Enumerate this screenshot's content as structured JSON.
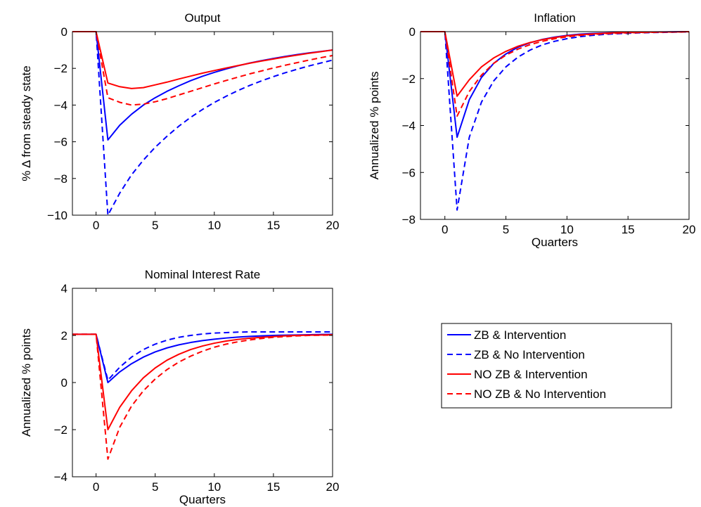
{
  "legend": {
    "entries": [
      "ZB & Intervention",
      "ZB & No Intervention",
      "NO ZB & Intervention",
      "NO ZB & No Intervention"
    ],
    "placement": "empty-bottom-right-panel"
  },
  "series_styles": [
    {
      "color": "#0000ff",
      "dash": "solid"
    },
    {
      "color": "#0000ff",
      "dash": "dashed"
    },
    {
      "color": "#ff0000",
      "dash": "solid"
    },
    {
      "color": "#ff0000",
      "dash": "dashed"
    }
  ],
  "chart_data": [
    {
      "type": "line",
      "title": "Output",
      "xlabel": "",
      "ylabel": "% Δ from steady state",
      "xlim": [
        -2,
        20
      ],
      "ylim": [
        -10,
        0
      ],
      "xticks": [
        0,
        5,
        10,
        15,
        20
      ],
      "yticks": [
        0,
        -2,
        -4,
        -6,
        -8,
        -10
      ],
      "x": [
        -2,
        -1,
        0,
        1,
        2,
        3,
        4,
        5,
        6,
        7,
        8,
        9,
        10,
        11,
        12,
        13,
        14,
        15,
        16,
        17,
        18,
        19,
        20
      ],
      "series": [
        {
          "name": "ZB & Intervention",
          "values": [
            0,
            0,
            0,
            -5.9,
            -5.1,
            -4.5,
            -4.0,
            -3.6,
            -3.25,
            -2.95,
            -2.67,
            -2.43,
            -2.22,
            -2.03,
            -1.86,
            -1.71,
            -1.58,
            -1.46,
            -1.35,
            -1.25,
            -1.16,
            -1.08,
            -1.0
          ]
        },
        {
          "name": "ZB & No Intervention",
          "values": [
            0,
            0,
            0,
            -10.0,
            -8.8,
            -7.8,
            -7.0,
            -6.3,
            -5.7,
            -5.15,
            -4.67,
            -4.24,
            -3.86,
            -3.52,
            -3.21,
            -2.93,
            -2.68,
            -2.45,
            -2.24,
            -2.05,
            -1.87,
            -1.71,
            -1.55
          ]
        },
        {
          "name": "NO ZB & Intervention",
          "values": [
            0,
            0,
            0,
            -2.8,
            -3.0,
            -3.1,
            -3.05,
            -2.9,
            -2.75,
            -2.58,
            -2.42,
            -2.26,
            -2.12,
            -1.98,
            -1.85,
            -1.72,
            -1.6,
            -1.49,
            -1.38,
            -1.28,
            -1.18,
            -1.09,
            -1.0
          ]
        },
        {
          "name": "NO ZB & No Intervention",
          "values": [
            0,
            0,
            0,
            -3.6,
            -3.85,
            -4.0,
            -3.95,
            -3.82,
            -3.65,
            -3.45,
            -3.25,
            -3.05,
            -2.85,
            -2.66,
            -2.48,
            -2.3,
            -2.14,
            -1.98,
            -1.83,
            -1.69,
            -1.55,
            -1.42,
            -1.3
          ]
        }
      ]
    },
    {
      "type": "line",
      "title": "Inflation",
      "xlabel": "Quarters",
      "ylabel": "Annualized % points",
      "xlim": [
        -2,
        20
      ],
      "ylim": [
        -8,
        0
      ],
      "xticks": [
        0,
        5,
        10,
        15,
        20
      ],
      "yticks": [
        0,
        -2,
        -4,
        -6,
        -8
      ],
      "x": [
        -2,
        -1,
        0,
        1,
        2,
        3,
        4,
        5,
        6,
        7,
        8,
        9,
        10,
        11,
        12,
        13,
        14,
        15,
        16,
        17,
        18,
        19,
        20
      ],
      "series": [
        {
          "name": "ZB & Intervention",
          "values": [
            0,
            0,
            0,
            -4.5,
            -2.9,
            -1.95,
            -1.35,
            -0.95,
            -0.66,
            -0.47,
            -0.33,
            -0.23,
            -0.16,
            -0.11,
            -0.08,
            -0.06,
            -0.04,
            -0.03,
            -0.02,
            -0.015,
            -0.01,
            -0.005,
            0
          ]
        },
        {
          "name": "ZB & No Intervention",
          "values": [
            0,
            0,
            0,
            -7.6,
            -4.5,
            -3.0,
            -2.1,
            -1.5,
            -1.08,
            -0.78,
            -0.56,
            -0.41,
            -0.3,
            -0.22,
            -0.16,
            -0.12,
            -0.09,
            -0.07,
            -0.05,
            -0.04,
            -0.03,
            -0.02,
            -0.01
          ]
        },
        {
          "name": "NO ZB & Intervention",
          "values": [
            0,
            0,
            0,
            -2.75,
            -2.05,
            -1.5,
            -1.12,
            -0.84,
            -0.62,
            -0.46,
            -0.34,
            -0.25,
            -0.18,
            -0.13,
            -0.1,
            -0.07,
            -0.05,
            -0.04,
            -0.03,
            -0.02,
            -0.015,
            -0.01,
            0
          ]
        },
        {
          "name": "NO ZB & No Intervention",
          "values": [
            0,
            0,
            0,
            -3.6,
            -2.55,
            -1.85,
            -1.35,
            -1.0,
            -0.74,
            -0.55,
            -0.41,
            -0.3,
            -0.22,
            -0.16,
            -0.12,
            -0.09,
            -0.07,
            -0.05,
            -0.04,
            -0.03,
            -0.02,
            -0.015,
            -0.01
          ]
        }
      ]
    },
    {
      "type": "line",
      "title": "Nominal Interest Rate",
      "xlabel": "Quarters",
      "ylabel": "Annualized % points",
      "xlim": [
        -2,
        20
      ],
      "ylim": [
        -4,
        4
      ],
      "xticks": [
        0,
        5,
        10,
        15,
        20
      ],
      "yticks": [
        4,
        2,
        0,
        -2,
        -4
      ],
      "x": [
        -2,
        -1,
        0,
        1,
        2,
        3,
        4,
        5,
        6,
        7,
        8,
        9,
        10,
        11,
        12,
        13,
        14,
        15,
        16,
        17,
        18,
        19,
        20
      ],
      "series": [
        {
          "name": "ZB & Intervention",
          "values": [
            2.05,
            2.05,
            2.05,
            0.0,
            0.45,
            0.8,
            1.08,
            1.3,
            1.47,
            1.6,
            1.7,
            1.78,
            1.84,
            1.89,
            1.93,
            1.96,
            1.98,
            2.0,
            2.01,
            2.02,
            2.03,
            2.04,
            2.05
          ]
        },
        {
          "name": "ZB & No Intervention",
          "values": [
            2.05,
            2.05,
            2.05,
            0.1,
            0.65,
            1.08,
            1.4,
            1.63,
            1.8,
            1.92,
            2.0,
            2.06,
            2.1,
            2.12,
            2.14,
            2.15,
            2.15,
            2.15,
            2.15,
            2.15,
            2.15,
            2.15,
            2.15
          ]
        },
        {
          "name": "NO ZB & Intervention",
          "values": [
            2.05,
            2.05,
            2.05,
            -2.0,
            -1.05,
            -0.35,
            0.2,
            0.62,
            0.95,
            1.2,
            1.4,
            1.55,
            1.67,
            1.76,
            1.83,
            1.88,
            1.92,
            1.95,
            1.98,
            2.0,
            2.01,
            2.02,
            2.03
          ]
        },
        {
          "name": "NO ZB & No Intervention",
          "values": [
            2.05,
            2.05,
            2.05,
            -3.25,
            -1.9,
            -1.0,
            -0.35,
            0.15,
            0.55,
            0.87,
            1.12,
            1.33,
            1.5,
            1.63,
            1.73,
            1.81,
            1.87,
            1.92,
            1.95,
            1.98,
            2.0,
            2.01,
            2.02
          ]
        }
      ]
    }
  ]
}
